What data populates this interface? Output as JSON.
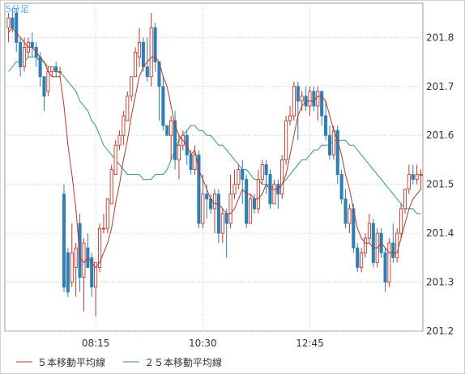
{
  "chart_data": {
    "type": "candlestick",
    "title": "5分足",
    "x_tick_labels": [
      "08:15",
      "10:30",
      "12:45"
    ],
    "y_ticks": [
      201.2,
      201.3,
      201.4,
      201.5,
      201.6,
      201.7,
      201.8
    ],
    "ylim": [
      201.2,
      201.87
    ],
    "grid": true,
    "legend": [
      {
        "name": "５本移動平均線",
        "color": "#b03a2e"
      },
      {
        "name": "２５本移動平均線",
        "color": "#2e9e74"
      }
    ],
    "colors": {
      "up": "#c0392b",
      "down": "#2f7fb5",
      "ma5": "#b03a2e",
      "ma25": "#2e9e74",
      "grid": "#c8c8c8",
      "title": "#40b0ff"
    },
    "candles": [
      [
        201.82,
        201.84,
        201.85,
        201.79
      ],
      [
        201.84,
        201.82,
        201.86,
        201.81
      ],
      [
        201.85,
        201.79,
        201.86,
        201.77
      ],
      [
        201.79,
        201.74,
        201.8,
        201.72
      ],
      [
        201.74,
        201.78,
        201.8,
        201.73
      ],
      [
        201.77,
        201.79,
        201.8,
        201.76
      ],
      [
        201.79,
        201.78,
        201.81,
        201.76
      ],
      [
        201.78,
        201.76,
        201.79,
        201.74
      ],
      [
        201.76,
        201.72,
        201.77,
        201.7
      ],
      [
        201.72,
        201.68,
        201.72,
        201.65
      ],
      [
        201.69,
        201.73,
        201.74,
        201.68
      ],
      [
        201.73,
        201.74,
        201.74,
        201.72
      ],
      [
        201.74,
        201.73,
        201.75,
        201.72
      ],
      [
        201.73,
        201.73,
        201.74,
        201.72
      ],
      [
        201.48,
        201.29,
        201.5,
        201.28
      ],
      [
        201.36,
        201.28,
        201.37,
        201.27
      ],
      [
        201.3,
        201.36,
        201.42,
        201.29
      ],
      [
        201.33,
        201.37,
        201.38,
        201.27
      ],
      [
        201.42,
        201.31,
        201.44,
        201.28
      ],
      [
        201.31,
        201.38,
        201.39,
        201.24
      ],
      [
        201.37,
        201.33,
        201.4,
        201.33
      ],
      [
        201.35,
        201.29,
        201.36,
        201.27
      ],
      [
        201.29,
        201.34,
        201.34,
        201.23
      ],
      [
        201.33,
        201.41,
        201.42,
        201.32
      ],
      [
        201.41,
        201.41,
        201.44,
        201.4
      ],
      [
        201.41,
        201.47,
        201.47,
        201.4
      ],
      [
        201.46,
        201.53,
        201.54,
        201.46
      ],
      [
        201.52,
        201.58,
        201.59,
        201.52
      ],
      [
        201.58,
        201.6,
        201.61,
        201.57
      ],
      [
        201.6,
        201.64,
        201.65,
        201.58
      ],
      [
        201.63,
        201.68,
        201.69,
        201.63
      ],
      [
        201.68,
        201.72,
        201.72,
        201.67
      ],
      [
        201.72,
        201.77,
        201.78,
        201.72
      ],
      [
        201.76,
        201.79,
        201.82,
        201.74
      ],
      [
        201.79,
        201.74,
        201.8,
        201.73
      ],
      [
        201.74,
        201.72,
        201.8,
        201.71
      ],
      [
        201.72,
        201.82,
        201.85,
        201.7
      ],
      [
        201.82,
        201.75,
        201.83,
        201.73
      ],
      [
        201.75,
        201.7,
        201.75,
        201.63
      ],
      [
        201.7,
        201.62,
        201.72,
        201.61
      ],
      [
        201.62,
        201.6,
        201.62,
        201.6
      ],
      [
        201.6,
        201.63,
        201.64,
        201.55
      ],
      [
        201.63,
        201.55,
        201.65,
        201.53
      ],
      [
        201.55,
        201.58,
        201.6,
        201.51
      ],
      [
        201.58,
        201.6,
        201.61,
        201.57
      ],
      [
        201.6,
        201.56,
        201.61,
        201.54
      ],
      [
        201.56,
        201.53,
        201.57,
        201.52
      ],
      [
        201.53,
        201.56,
        201.58,
        201.52
      ],
      [
        201.56,
        201.42,
        201.57,
        201.41
      ],
      [
        201.42,
        201.48,
        201.52,
        201.41
      ],
      [
        201.48,
        201.47,
        201.5,
        201.43
      ],
      [
        201.47,
        201.45,
        201.48,
        201.44
      ],
      [
        201.45,
        201.48,
        201.49,
        201.4
      ],
      [
        201.48,
        201.4,
        201.49,
        201.38
      ],
      [
        201.4,
        201.44,
        201.45,
        201.38
      ],
      [
        201.44,
        201.42,
        201.45,
        201.35
      ],
      [
        201.42,
        201.48,
        201.52,
        201.41
      ],
      [
        201.48,
        201.5,
        201.53,
        201.47
      ],
      [
        201.5,
        201.53,
        201.54,
        201.49
      ],
      [
        201.53,
        201.51,
        201.55,
        201.46
      ],
      [
        201.51,
        201.42,
        201.52,
        201.41
      ],
      [
        201.42,
        201.47,
        201.48,
        201.42
      ],
      [
        201.47,
        201.45,
        201.48,
        201.44
      ],
      [
        201.45,
        201.51,
        201.53,
        201.44
      ],
      [
        201.51,
        201.54,
        201.55,
        201.5
      ],
      [
        201.54,
        201.52,
        201.55,
        201.48
      ],
      [
        201.52,
        201.46,
        201.53,
        201.45
      ],
      [
        201.46,
        201.5,
        201.51,
        201.46
      ],
      [
        201.5,
        201.48,
        201.51,
        201.45
      ],
      [
        201.48,
        201.55,
        201.56,
        201.47
      ],
      [
        201.55,
        201.63,
        201.64,
        201.54
      ],
      [
        201.63,
        201.64,
        201.66,
        201.62
      ],
      [
        201.64,
        201.7,
        201.71,
        201.63
      ],
      [
        201.7,
        201.67,
        201.71,
        201.59
      ],
      [
        201.67,
        201.68,
        201.69,
        201.65
      ],
      [
        201.68,
        201.66,
        201.7,
        201.65
      ],
      [
        201.66,
        201.69,
        201.7,
        201.64
      ],
      [
        201.69,
        201.66,
        201.7,
        201.65
      ],
      [
        201.66,
        201.69,
        201.7,
        201.63
      ],
      [
        201.69,
        201.64,
        201.69,
        201.62
      ],
      [
        201.64,
        201.6,
        201.67,
        201.59
      ],
      [
        201.6,
        201.56,
        201.62,
        201.55
      ],
      [
        201.56,
        201.61,
        201.62,
        201.55
      ],
      [
        201.61,
        201.52,
        201.62,
        201.5
      ],
      [
        201.52,
        201.47,
        201.53,
        201.46
      ],
      [
        201.47,
        201.42,
        201.49,
        201.41
      ],
      [
        201.42,
        201.45,
        201.46,
        201.4
      ],
      [
        201.45,
        201.37,
        201.46,
        201.36
      ],
      [
        201.37,
        201.33,
        201.38,
        201.32
      ],
      [
        201.33,
        201.36,
        201.37,
        201.32
      ],
      [
        201.36,
        201.39,
        201.4,
        201.35
      ],
      [
        201.39,
        201.42,
        201.44,
        201.38
      ],
      [
        201.42,
        201.34,
        201.43,
        201.33
      ],
      [
        201.34,
        201.4,
        201.41,
        201.33
      ],
      [
        201.4,
        201.36,
        201.41,
        201.35
      ],
      [
        201.36,
        201.3,
        201.37,
        201.28
      ],
      [
        201.3,
        201.38,
        201.39,
        201.29
      ],
      [
        201.38,
        201.35,
        201.42,
        201.34
      ],
      [
        201.35,
        201.4,
        201.41,
        201.34
      ],
      [
        201.4,
        201.45,
        201.46,
        201.39
      ],
      [
        201.45,
        201.49,
        201.49,
        201.44
      ],
      [
        201.49,
        201.52,
        201.54,
        201.48
      ],
      [
        201.52,
        201.51,
        201.54,
        201.5
      ],
      [
        201.51,
        201.52,
        201.54,
        201.5
      ],
      [
        201.52,
        201.52,
        201.53,
        201.49
      ]
    ],
    "ma5": [
      201.81,
      201.82,
      201.81,
      201.8,
      201.79,
      201.78,
      201.78,
      201.77,
      201.76,
      201.75,
      201.73,
      201.72,
      201.72,
      201.72,
      201.66,
      201.58,
      201.52,
      201.45,
      201.35,
      201.34,
      201.35,
      201.34,
      201.33,
      201.34,
      201.36,
      201.38,
      201.41,
      201.46,
      201.5,
      201.55,
      201.59,
      201.64,
      201.68,
      201.72,
      201.74,
      201.75,
      201.76,
      201.76,
      201.75,
      201.72,
      201.7,
      201.66,
      201.62,
      201.6,
      201.59,
      201.58,
      201.56,
      201.57,
      201.53,
      201.51,
      201.49,
      201.47,
      201.46,
      201.46,
      201.45,
      201.44,
      201.44,
      201.45,
      201.47,
      201.49,
      201.48,
      201.48,
      201.47,
      201.47,
      201.48,
      201.5,
      201.49,
      201.49,
      201.49,
      201.5,
      201.52,
      201.56,
      201.6,
      201.64,
      201.66,
      201.67,
      201.67,
      201.67,
      201.68,
      201.68,
      201.67,
      201.64,
      201.61,
      201.59,
      201.56,
      201.52,
      201.49,
      201.45,
      201.41,
      201.39,
      201.38,
      201.38,
      201.37,
      201.37,
      201.38,
      201.37,
      201.36,
      201.36,
      201.36,
      201.39,
      201.42,
      201.45,
      201.47,
      201.48,
      201.49
    ],
    "ma25": [
      201.73,
      201.74,
      201.75,
      201.75,
      201.75,
      201.76,
      201.76,
      201.76,
      201.75,
      201.75,
      201.74,
      201.74,
      201.73,
      201.73,
      201.72,
      201.71,
      201.7,
      201.69,
      201.67,
      201.66,
      201.65,
      201.63,
      201.62,
      201.6,
      201.58,
      201.57,
      201.56,
      201.55,
      201.54,
      201.53,
      201.52,
      201.52,
      201.52,
      201.52,
      201.51,
      201.51,
      201.51,
      201.52,
      201.52,
      201.52,
      201.53,
      201.55,
      201.57,
      201.59,
      201.6,
      201.61,
      201.62,
      201.62,
      201.61,
      201.61,
      201.6,
      201.6,
      201.59,
      201.58,
      201.58,
      201.57,
      201.56,
      201.55,
      201.54,
      201.53,
      201.53,
      201.52,
      201.51,
      201.51,
      201.5,
      201.5,
      201.5,
      201.49,
      201.49,
      201.5,
      201.51,
      201.52,
      201.53,
      201.54,
      201.55,
      201.55,
      201.56,
      201.57,
      201.57,
      201.58,
      201.58,
      201.58,
      201.59,
      201.59,
      201.59,
      201.59,
      201.58,
      201.58,
      201.57,
      201.56,
      201.55,
      201.54,
      201.53,
      201.52,
      201.51,
      201.5,
      201.49,
      201.48,
      201.47,
      201.46,
      201.45,
      201.45,
      201.45,
      201.44,
      201.44
    ]
  }
}
